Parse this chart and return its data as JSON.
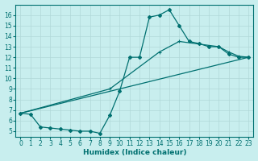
{
  "xlabel": "Humidex (Indice chaleur)",
  "bg_color": "#c8eeee",
  "grid_color": "#b0d8d8",
  "line_color": "#007070",
  "xlim": [
    -0.5,
    23.5
  ],
  "ylim": [
    4.5,
    17
  ],
  "xticks": [
    0,
    1,
    2,
    3,
    4,
    5,
    6,
    7,
    8,
    9,
    10,
    11,
    12,
    13,
    14,
    15,
    16,
    17,
    18,
    19,
    20,
    21,
    22,
    23
  ],
  "yticks": [
    5,
    6,
    7,
    8,
    9,
    10,
    11,
    12,
    13,
    14,
    15,
    16
  ],
  "line1_x": [
    0,
    1,
    2,
    3,
    4,
    5,
    6,
    7,
    8,
    9,
    10,
    11,
    12,
    13,
    14,
    15,
    16,
    17,
    18,
    19,
    20,
    21,
    22,
    23
  ],
  "line1_y": [
    6.7,
    6.6,
    5.4,
    5.3,
    5.2,
    5.1,
    5.0,
    5.0,
    4.8,
    6.5,
    8.8,
    12.0,
    12.0,
    15.8,
    16.0,
    16.5,
    15.0,
    13.5,
    13.3,
    13.0,
    13.0,
    12.3,
    12.0,
    12.0
  ],
  "line2_x": [
    0,
    9,
    14,
    16,
    20,
    21,
    22,
    23
  ],
  "line2_y": [
    6.7,
    9.0,
    12.5,
    13.5,
    13.0,
    12.5,
    12.1,
    12.0
  ],
  "line3_x": [
    0,
    23
  ],
  "line3_y": [
    6.7,
    12.0
  ]
}
